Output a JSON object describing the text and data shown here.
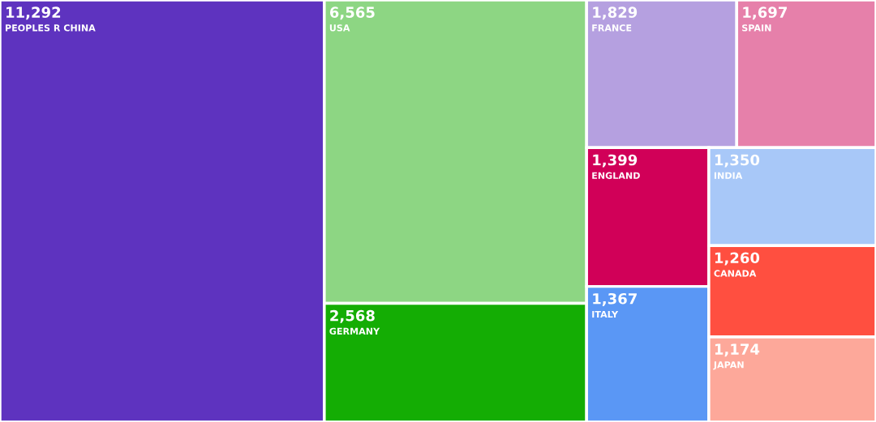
{
  "chart_data": {
    "type": "other",
    "categories": [
      "PEOPLES R CHINA",
      "USA",
      "GERMANY",
      "FRANCE",
      "SPAIN",
      "ENGLAND",
      "ITALY",
      "INDIA",
      "CANADA",
      "JAPAN"
    ],
    "values": [
      11292,
      6565,
      2568,
      1829,
      1697,
      1399,
      1367,
      1350,
      1260,
      1174
    ],
    "value_labels": [
      "11,292",
      "6,565",
      "2,568",
      "1,829",
      "1,697",
      "1,399",
      "1,367",
      "1,350",
      "1,260",
      "1,174"
    ],
    "colors": [
      "#5e33bf",
      "#8dd683",
      "#14ad04",
      "#b5a0e0",
      "#e680aa",
      "#d10058",
      "#5a97f5",
      "#a8c8f8",
      "#ff4f40",
      "#fda89a"
    ]
  }
}
